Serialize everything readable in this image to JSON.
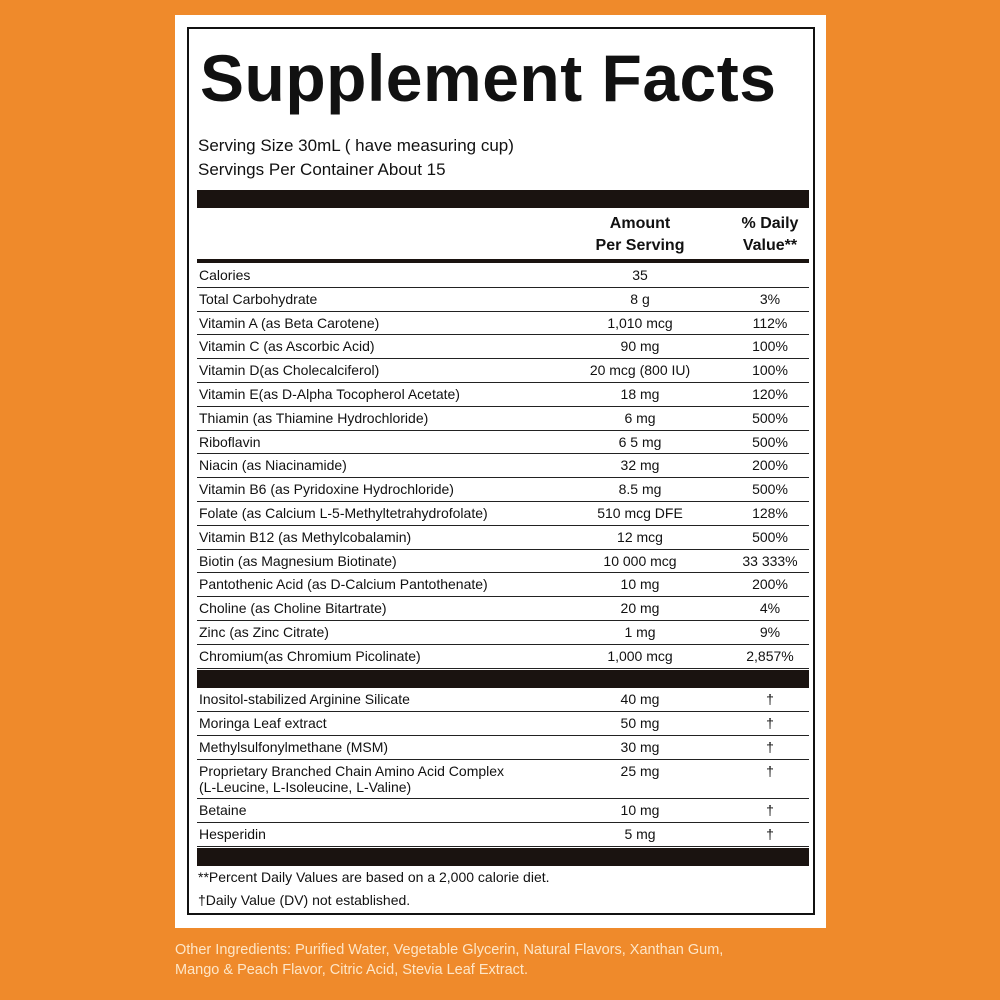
{
  "title": "Supplement Facts",
  "serving": [
    "Serving Size 30mL ( have measuring cup)",
    "Servings Per Container About 15"
  ],
  "header": {
    "amount": [
      "Amount",
      "Per Serving"
    ],
    "daily_value": [
      "% Daily",
      "Value**"
    ]
  },
  "rows": [
    [
      "Calories",
      "35",
      null
    ],
    [
      "Total Carbohydrate",
      "8 g",
      "3%"
    ],
    [
      "Vitamin A (as Beta Carotene)",
      "1,010 mcg",
      "112%"
    ],
    [
      "Vitamin C (as Ascorbic Acid)",
      "90 mg",
      "100%"
    ],
    [
      "Vitamin D(as Cholecalciferol)",
      "20 mcg (800 IU)",
      "100%"
    ],
    [
      "Vitamin E(as D-Alpha Tocopherol Acetate)",
      "18 mg",
      "120%"
    ],
    [
      "Thiamin (as Thiamine Hydrochloride)",
      "6 mg",
      "500%"
    ],
    [
      "Riboflavin",
      "6 5 mg",
      "500%"
    ],
    [
      "Niacin (as Niacinamide)",
      "32 mg",
      "200%"
    ],
    [
      "Vitamin B6 (as Pyridoxine Hydrochloride)",
      "8.5 mg",
      "500%"
    ],
    [
      "Folate (as Calcium L-5-Methyltetrahydrofolate)",
      "510 mcg DFE",
      "128%"
    ],
    [
      "Vitamin B12 (as Methylcobalamin)",
      "12 mcg",
      "500%"
    ],
    [
      "Biotin (as Magnesium Biotinate)",
      "10 000 mcg",
      "33 333%"
    ],
    [
      "Pantothenic Acid (as D-Calcium Pantothenate)",
      "10 mg",
      "200%"
    ],
    [
      "Choline (as Choline Bitartrate)",
      "20 mg",
      "4%"
    ],
    [
      "Zinc (as Zinc Citrate)",
      "1 mg",
      "9%"
    ],
    [
      "Chromium(as Chromium Picolinate)",
      "1,000 mcg",
      "2,857%"
    ]
  ],
  "other_rows": [
    [
      "Inositol-stabilized Arginine Silicate",
      "40 mg",
      "†"
    ],
    [
      "Moringa Leaf extract",
      "50 mg",
      "†"
    ],
    [
      "Methylsulfonylmethane (MSM)",
      "30 mg",
      "†"
    ],
    [
      [
        "Proprietary Branched Chain Amino Acid Complex",
        "(L-Leucine, L-Isoleucine, L-Valine)"
      ],
      "25 mg",
      "†"
    ],
    [
      "Betaine",
      "10 mg",
      "†"
    ],
    [
      "Hesperidin",
      "5 mg",
      "†"
    ]
  ],
  "footnotes": [
    "**Percent Daily Values are based on a 2,000 calorie diet.",
    "†Daily Value (DV) not established."
  ],
  "other_ingredients": [
    "Other Ingredients: Purified Water, Vegetable Glycerin, Natural Flavors, Xanthan Gum,",
    "Mango & Peach Flavor, Citric Acid, Stevia Leaf Extract."
  ]
}
